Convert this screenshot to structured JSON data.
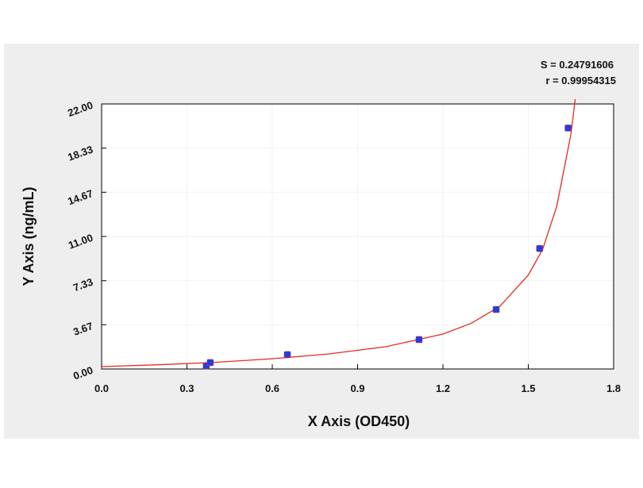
{
  "chart_data": {
    "type": "scatter",
    "annotations": [
      "S = 0.24791606",
      "r = 0.99954315"
    ],
    "x_label": "X Axis (OD450)",
    "y_label": "Y Axis (ng/mL)",
    "points": {
      "color": "#1f3fe0",
      "x": [
        0.368,
        0.382,
        0.653,
        1.116,
        1.387,
        1.54,
        1.64
      ],
      "values": [
        0.26,
        0.53,
        1.19,
        2.44,
        4.94,
        10.0,
        20.0
      ]
    },
    "fit": {
      "color": "#e8291c",
      "x": [
        0,
        0.2,
        0.4,
        0.6,
        0.8,
        1.0,
        1.2,
        1.3,
        1.4,
        1.5,
        1.55,
        1.6,
        1.65,
        1.665
      ],
      "values": [
        0.2,
        0.35,
        0.55,
        0.85,
        1.25,
        1.85,
        2.9,
        3.8,
        5.2,
        7.8,
        9.9,
        13.5,
        19.5,
        22.4
      ]
    },
    "xlim": [
      0,
      1.8
    ],
    "ylim": [
      0,
      22
    ],
    "xticks": [
      {
        "value": 0,
        "label": "0.0"
      },
      0.3,
      0.6,
      0.9,
      1.2,
      1.5,
      1.8
    ],
    "yticks": [
      {
        "value": 0,
        "label": "0.00"
      },
      3.67,
      7.33,
      {
        "value": 11,
        "label": "11.00"
      },
      14.67,
      18.33,
      {
        "value": 22,
        "label": "22.00"
      }
    ],
    "grid": true
  }
}
